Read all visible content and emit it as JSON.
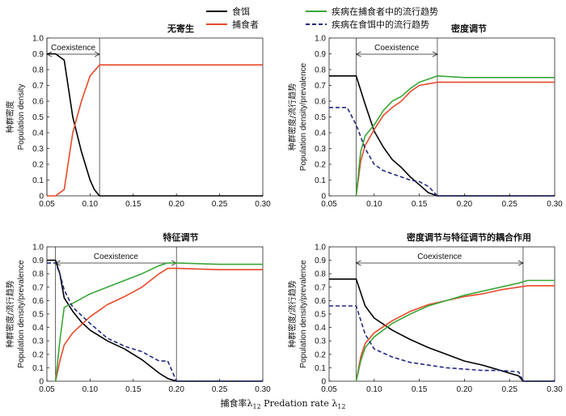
{
  "colors": {
    "prey": "#000000",
    "predator": "#e8492a",
    "disease_predator": "#3aa637",
    "disease_prey": "#1f2a80"
  },
  "legend": [
    {
      "key": "prey",
      "label": "食饵",
      "style": "solid"
    },
    {
      "key": "predator",
      "label": "捕食者",
      "style": "solid"
    },
    {
      "key": "disease_predator",
      "label": "疾病在捕食者中的流行趋势",
      "style": "solid"
    },
    {
      "key": "disease_prey",
      "label": "疾病在食饵中的流行趋势",
      "style": "dashed"
    }
  ],
  "x_label": {
    "cn": "捕食率λ",
    "sub": "12",
    "en": " Predation rate λ",
    "sub2": "12"
  },
  "chart_data": [
    {
      "type": "line",
      "title": "无寄生",
      "ylabel_cn": "种群密度",
      "ylabel_en": "Population density",
      "xlim": [
        0.05,
        0.3
      ],
      "ylim": [
        0,
        1.0
      ],
      "xticks": [
        "0.05",
        "0.10",
        "0.15",
        "0.20",
        "0.25",
        "0.30"
      ],
      "yticks": [
        "0",
        "0.1",
        "0.2",
        "0.3",
        "0.4",
        "0.5",
        "0.6",
        "0.7",
        "0.8",
        "0.9",
        "1.0"
      ],
      "coexistence": {
        "label": "Coexistence",
        "x0": 0.05,
        "x1": 0.111
      },
      "series": [
        {
          "key": "prey",
          "x": [
            0.05,
            0.06,
            0.07,
            0.08,
            0.09,
            0.1,
            0.105,
            0.111,
            0.12,
            0.3
          ],
          "y": [
            0.9,
            0.9,
            0.86,
            0.5,
            0.28,
            0.1,
            0.04,
            0.0,
            0.0,
            0.0
          ]
        },
        {
          "key": "predator",
          "x": [
            0.05,
            0.06,
            0.07,
            0.08,
            0.09,
            0.1,
            0.111,
            0.12,
            0.3
          ],
          "y": [
            0.0,
            0.0,
            0.04,
            0.4,
            0.6,
            0.76,
            0.83,
            0.83,
            0.83
          ]
        }
      ]
    },
    {
      "type": "line",
      "title": "密度调节",
      "ylabel_cn": "种群密度/流行趋势",
      "ylabel_en": "Population density/prevalence",
      "xlim": [
        0.05,
        0.3
      ],
      "ylim": [
        0,
        1.0
      ],
      "xticks": [
        "0.05",
        "0.10",
        "0.15",
        "0.20",
        "0.25",
        "0.30"
      ],
      "yticks": [
        "0",
        "0.1",
        "0.2",
        "0.3",
        "0.4",
        "0.5",
        "0.6",
        "0.7",
        "0.8",
        "0.9",
        "1.0"
      ],
      "coexistence": {
        "label": "Coexistence",
        "x0": 0.08,
        "x1": 0.17
      },
      "series": [
        {
          "key": "prey",
          "x": [
            0.05,
            0.06,
            0.07,
            0.08,
            0.09,
            0.1,
            0.11,
            0.12,
            0.13,
            0.14,
            0.15,
            0.16,
            0.17,
            0.3
          ],
          "y": [
            0.76,
            0.76,
            0.76,
            0.76,
            0.58,
            0.41,
            0.31,
            0.23,
            0.18,
            0.12,
            0.07,
            0.02,
            0.0,
            0.0
          ]
        },
        {
          "key": "predator",
          "x": [
            0.08,
            0.085,
            0.09,
            0.1,
            0.11,
            0.12,
            0.13,
            0.14,
            0.15,
            0.16,
            0.17,
            0.2,
            0.25,
            0.3
          ],
          "y": [
            0.0,
            0.22,
            0.32,
            0.42,
            0.51,
            0.56,
            0.6,
            0.66,
            0.7,
            0.71,
            0.72,
            0.72,
            0.72,
            0.72
          ]
        },
        {
          "key": "disease_predator",
          "x": [
            0.08,
            0.085,
            0.09,
            0.1,
            0.11,
            0.12,
            0.13,
            0.14,
            0.15,
            0.16,
            0.17,
            0.2,
            0.25,
            0.3
          ],
          "y": [
            0.0,
            0.28,
            0.38,
            0.45,
            0.54,
            0.6,
            0.63,
            0.68,
            0.72,
            0.74,
            0.76,
            0.75,
            0.75,
            0.75
          ]
        },
        {
          "key": "disease_prey",
          "x": [
            0.05,
            0.06,
            0.07,
            0.08,
            0.09,
            0.1,
            0.11,
            0.12,
            0.13,
            0.14,
            0.15,
            0.16,
            0.17,
            0.3
          ],
          "y": [
            0.56,
            0.56,
            0.56,
            0.45,
            0.3,
            0.2,
            0.16,
            0.14,
            0.12,
            0.1,
            0.09,
            0.06,
            0.0,
            0.0
          ]
        }
      ]
    },
    {
      "type": "line",
      "title": "特征调节",
      "ylabel_cn": "种群密度/流行趋势",
      "ylabel_en": "Population density/prevalence",
      "xlim": [
        0.05,
        0.3
      ],
      "ylim": [
        0,
        1.0
      ],
      "xticks": [
        "0.05",
        "0.10",
        "0.15",
        "0.20",
        "0.25",
        "0.30"
      ],
      "yticks": [
        "0",
        "0.1",
        "0.2",
        "0.3",
        "0.4",
        "0.5",
        "0.6",
        "0.7",
        "0.8",
        "0.9",
        "1.0"
      ],
      "coexistence": {
        "label": "Coexistence",
        "x0": 0.06,
        "x1": 0.2
      },
      "series": [
        {
          "key": "prey",
          "x": [
            0.05,
            0.06,
            0.065,
            0.07,
            0.08,
            0.09,
            0.1,
            0.12,
            0.14,
            0.16,
            0.18,
            0.19,
            0.2,
            0.3
          ],
          "y": [
            0.9,
            0.9,
            0.8,
            0.62,
            0.52,
            0.44,
            0.38,
            0.3,
            0.24,
            0.16,
            0.06,
            0.02,
            0.0,
            0.0
          ]
        },
        {
          "key": "predator",
          "x": [
            0.06,
            0.065,
            0.07,
            0.08,
            0.1,
            0.12,
            0.14,
            0.16,
            0.18,
            0.19,
            0.2,
            0.25,
            0.3
          ],
          "y": [
            0.0,
            0.15,
            0.27,
            0.36,
            0.48,
            0.57,
            0.63,
            0.7,
            0.8,
            0.84,
            0.84,
            0.83,
            0.83
          ]
        },
        {
          "key": "disease_predator",
          "x": [
            0.06,
            0.065,
            0.07,
            0.08,
            0.1,
            0.12,
            0.14,
            0.16,
            0.18,
            0.19,
            0.2,
            0.25,
            0.3
          ],
          "y": [
            0.0,
            0.3,
            0.55,
            0.58,
            0.65,
            0.7,
            0.75,
            0.8,
            0.86,
            0.88,
            0.88,
            0.87,
            0.87
          ]
        },
        {
          "key": "disease_prey",
          "x": [
            0.05,
            0.06,
            0.065,
            0.07,
            0.08,
            0.1,
            0.12,
            0.14,
            0.16,
            0.18,
            0.19,
            0.2,
            0.3
          ],
          "y": [
            0.88,
            0.88,
            0.8,
            0.68,
            0.55,
            0.43,
            0.32,
            0.26,
            0.22,
            0.15,
            0.15,
            0.0,
            0.0
          ]
        }
      ]
    },
    {
      "type": "line",
      "title": "密度调节与特征调节的耦合作用",
      "ylabel_cn": "种群密度/流行趋势",
      "ylabel_en": "Population density/prevalence",
      "xlim": [
        0.05,
        0.3
      ],
      "ylim": [
        0,
        1.0
      ],
      "xticks": [
        "0.05",
        "0.10",
        "0.15",
        "0.20",
        "0.25",
        "0.30"
      ],
      "yticks": [
        "0",
        "0.1",
        "0.2",
        "0.3",
        "0.4",
        "0.5",
        "0.6",
        "0.7",
        "0.8",
        "0.9",
        "1.0"
      ],
      "coexistence": {
        "label": "Coexistence",
        "x0": 0.08,
        "x1": 0.265
      },
      "series": [
        {
          "key": "prey",
          "x": [
            0.05,
            0.06,
            0.07,
            0.08,
            0.09,
            0.1,
            0.12,
            0.14,
            0.16,
            0.18,
            0.2,
            0.22,
            0.24,
            0.26,
            0.265,
            0.3
          ],
          "y": [
            0.76,
            0.76,
            0.76,
            0.76,
            0.56,
            0.47,
            0.38,
            0.31,
            0.25,
            0.2,
            0.15,
            0.12,
            0.08,
            0.04,
            0.0,
            0.0
          ]
        },
        {
          "key": "predator",
          "x": [
            0.08,
            0.085,
            0.09,
            0.1,
            0.12,
            0.14,
            0.16,
            0.18,
            0.2,
            0.22,
            0.24,
            0.26,
            0.27,
            0.3
          ],
          "y": [
            0.0,
            0.18,
            0.28,
            0.36,
            0.45,
            0.52,
            0.57,
            0.6,
            0.63,
            0.65,
            0.68,
            0.7,
            0.71,
            0.71
          ]
        },
        {
          "key": "disease_predator",
          "x": [
            0.08,
            0.085,
            0.09,
            0.1,
            0.12,
            0.14,
            0.16,
            0.18,
            0.2,
            0.22,
            0.24,
            0.26,
            0.27,
            0.3
          ],
          "y": [
            0.0,
            0.15,
            0.25,
            0.33,
            0.43,
            0.5,
            0.56,
            0.6,
            0.64,
            0.67,
            0.7,
            0.73,
            0.75,
            0.75
          ]
        },
        {
          "key": "disease_prey",
          "x": [
            0.05,
            0.06,
            0.07,
            0.08,
            0.09,
            0.1,
            0.12,
            0.14,
            0.16,
            0.18,
            0.2,
            0.22,
            0.24,
            0.26,
            0.265,
            0.3
          ],
          "y": [
            0.56,
            0.56,
            0.56,
            0.56,
            0.35,
            0.24,
            0.18,
            0.14,
            0.12,
            0.1,
            0.09,
            0.08,
            0.08,
            0.07,
            0.0,
            0.0
          ]
        }
      ]
    }
  ]
}
